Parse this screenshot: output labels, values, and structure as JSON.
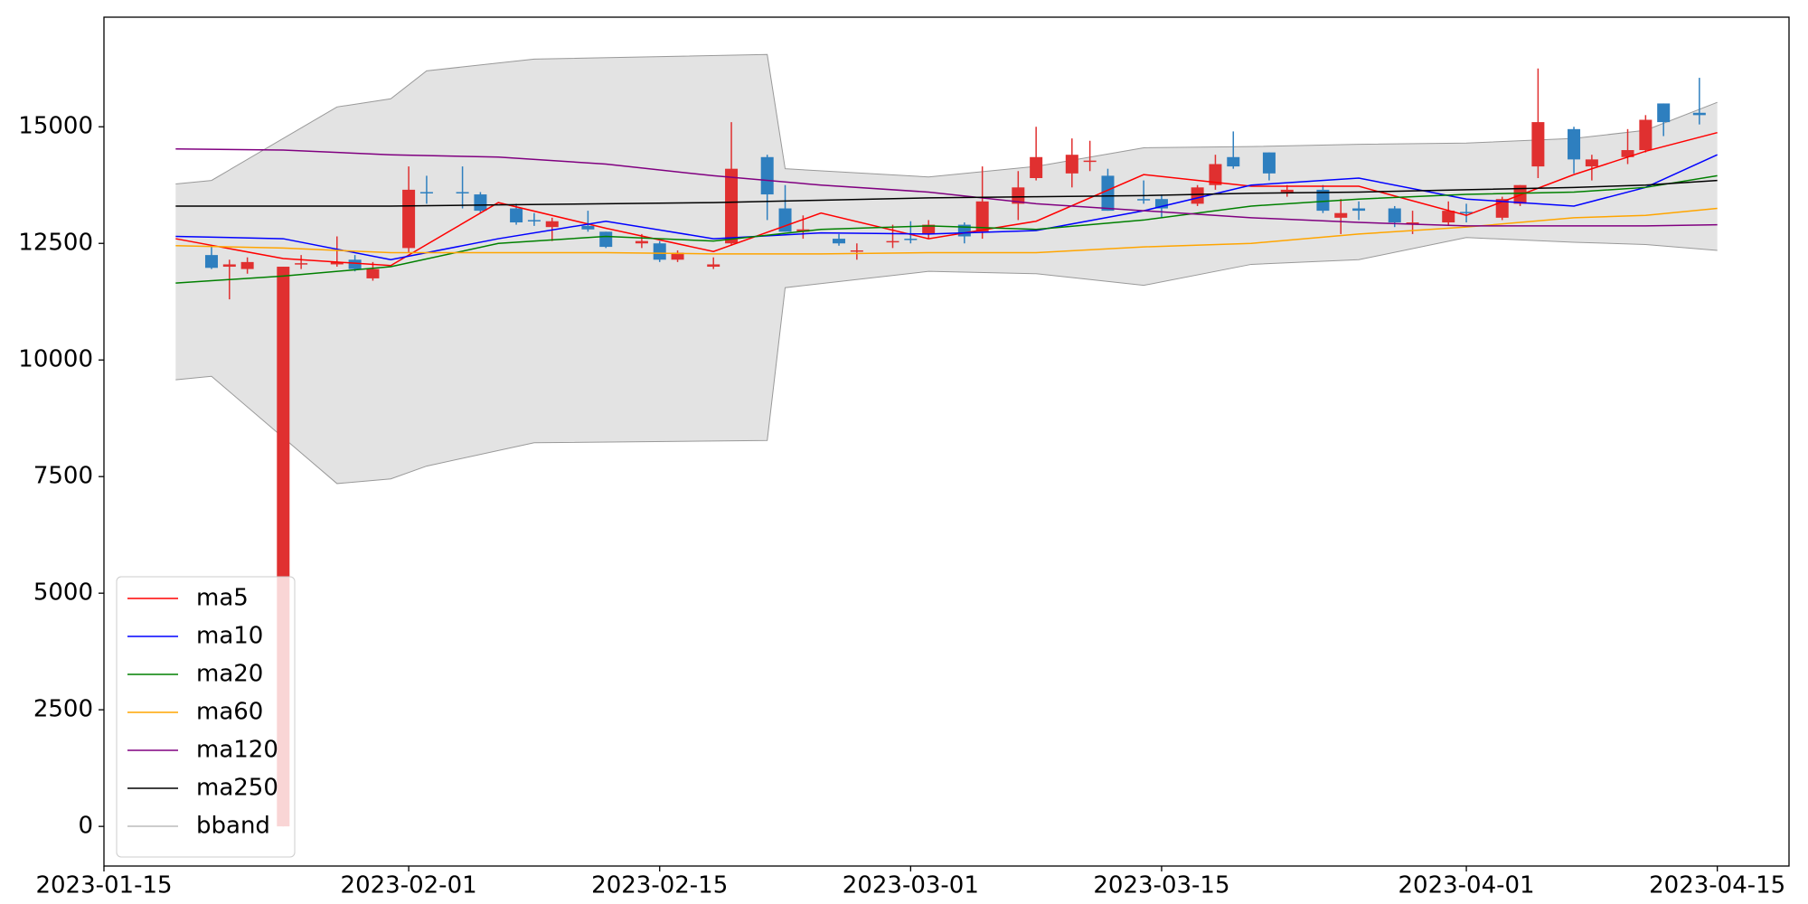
{
  "chart_data": {
    "type": "candlestick",
    "xlim": [
      "2023-01-15",
      "2023-04-19"
    ],
    "xticks": [
      "2023-01-15",
      "2023-02-01",
      "2023-02-15",
      "2023-03-01",
      "2023-03-15",
      "2023-04-01",
      "2023-04-15"
    ],
    "ylim": [
      -850,
      17350
    ],
    "yticks": [
      0,
      2500,
      5000,
      7500,
      10000,
      12500,
      15000
    ],
    "up_color": "#e03030",
    "down_color": "#2e7fbf",
    "candles": {
      "x": [
        "2023-01-21",
        "2023-01-22",
        "2023-01-23",
        "2023-01-25",
        "2023-01-26",
        "2023-01-28",
        "2023-01-29",
        "2023-01-30",
        "2023-02-01",
        "2023-02-02",
        "2023-02-04",
        "2023-02-05",
        "2023-02-07",
        "2023-02-08",
        "2023-02-09",
        "2023-02-11",
        "2023-02-12",
        "2023-02-14",
        "2023-02-15",
        "2023-02-16",
        "2023-02-18",
        "2023-02-19",
        "2023-02-21",
        "2023-02-22",
        "2023-02-23",
        "2023-02-25",
        "2023-02-26",
        "2023-02-28",
        "2023-03-01",
        "2023-03-02",
        "2023-03-04",
        "2023-03-05",
        "2023-03-07",
        "2023-03-08",
        "2023-03-10",
        "2023-03-11",
        "2023-03-12",
        "2023-03-14",
        "2023-03-15",
        "2023-03-17",
        "2023-03-18",
        "2023-03-19",
        "2023-03-21",
        "2023-03-22",
        "2023-03-24",
        "2023-03-25",
        "2023-03-26",
        "2023-03-28",
        "2023-03-29",
        "2023-03-31",
        "2023-04-01",
        "2023-04-03",
        "2023-04-04",
        "2023-04-05",
        "2023-04-07",
        "2023-04-08",
        "2023-04-10",
        "2023-04-11",
        "2023-04-12",
        "2023-04-14"
      ],
      "open": [
        12250,
        12000,
        11950,
        0,
        12050,
        12050,
        12150,
        11750,
        12400,
        13600,
        13600,
        13550,
        13250,
        13000,
        12850,
        12875,
        12750,
        12500,
        12500,
        12150,
        12000,
        12500,
        14350,
        13250,
        12750,
        12600,
        12325,
        12525,
        12600,
        12700,
        12900,
        12750,
        13350,
        13900,
        14000,
        14250,
        13950,
        13450,
        13450,
        13350,
        13750,
        14350,
        14450,
        13600,
        13650,
        13050,
        13250,
        13250,
        12925,
        12950,
        13175,
        13050,
        13350,
        14150,
        14950,
        14150,
        14350,
        14500,
        15500,
        15300
      ],
      "high": [
        12450,
        12150,
        12200,
        12000,
        12250,
        12650,
        12250,
        12100,
        14150,
        13950,
        14150,
        13600,
        13350,
        13150,
        13050,
        13200,
        12750,
        12700,
        12550,
        12350,
        12200,
        15100,
        14400,
        13750,
        13100,
        12700,
        12500,
        12900,
        12975,
        13000,
        12950,
        14150,
        14050,
        15000,
        14750,
        14700,
        14100,
        13850,
        13550,
        13750,
        14400,
        14900,
        14450,
        13750,
        13750,
        13450,
        13400,
        13300,
        13200,
        13400,
        13350,
        13500,
        13750,
        16250,
        15000,
        14400,
        14950,
        15250,
        15500,
        16050
      ],
      "low": [
        11950,
        11300,
        11850,
        0,
        11950,
        12000,
        11900,
        11700,
        12300,
        13350,
        13250,
        13150,
        12900,
        12875,
        12550,
        12750,
        12400,
        12400,
        12100,
        12100,
        11950,
        12450,
        13000,
        12750,
        12600,
        12450,
        12150,
        12400,
        12500,
        12600,
        12500,
        12600,
        13000,
        13850,
        13700,
        14050,
        13200,
        13350,
        13050,
        13300,
        13650,
        14100,
        13850,
        13500,
        13150,
        12700,
        13000,
        12850,
        12700,
        12900,
        12950,
        13000,
        13300,
        13900,
        14000,
        13850,
        14200,
        14450,
        14800,
        15050
      ],
      "close": [
        11975,
        12050,
        12100,
        12000,
        12075,
        12100,
        11950,
        11950,
        13650,
        13575,
        13575,
        13200,
        12950,
        12975,
        12975,
        12800,
        12425,
        12550,
        12150,
        12300,
        12050,
        14100,
        13550,
        12750,
        12800,
        12500,
        12350,
        12550,
        12575,
        12900,
        12650,
        13400,
        13700,
        14350,
        14400,
        14275,
        13200,
        13425,
        13250,
        13700,
        14200,
        14150,
        14000,
        13650,
        13200,
        13150,
        13200,
        12950,
        12950,
        13200,
        13150,
        13450,
        13750,
        15100,
        14300,
        14300,
        14500,
        15150,
        15100,
        15250
      ]
    },
    "line_x": [
      "2023-01-19",
      "2023-01-25",
      "2023-01-31",
      "2023-02-06",
      "2023-02-12",
      "2023-02-18",
      "2023-02-24",
      "2023-03-02",
      "2023-03-08",
      "2023-03-14",
      "2023-03-20",
      "2023-03-26",
      "2023-04-01",
      "2023-04-07",
      "2023-04-11",
      "2023-04-15"
    ],
    "series": [
      {
        "name": "ma5",
        "color": "#ff0000",
        "values": [
          12600,
          12175,
          12025,
          13375,
          12825,
          12325,
          13150,
          12600,
          12975,
          13975,
          13725,
          13725,
          13100,
          13975,
          14475,
          14875
        ]
      },
      {
        "name": "ma10",
        "color": "#0000ff",
        "values": [
          12650,
          12600,
          12150,
          12600,
          12975,
          12600,
          12725,
          12700,
          12775,
          13200,
          13750,
          13900,
          13450,
          13300,
          13700,
          14400
        ]
      },
      {
        "name": "ma20",
        "color": "#008000",
        "values": [
          11650,
          11800,
          12000,
          12500,
          12650,
          12550,
          12800,
          12875,
          12800,
          13000,
          13300,
          13450,
          13550,
          13600,
          13700,
          13950
        ]
      },
      {
        "name": "ma60",
        "color": "#ffa500",
        "values": [
          12450,
          12400,
          12300,
          12300,
          12300,
          12275,
          12275,
          12300,
          12300,
          12425,
          12500,
          12700,
          12850,
          13050,
          13100,
          13250
        ]
      },
      {
        "name": "ma120",
        "color": "#800080",
        "values": [
          14525,
          14500,
          14400,
          14350,
          14200,
          13950,
          13750,
          13600,
          13350,
          13200,
          13050,
          12950,
          12875,
          12875,
          12875,
          12900
        ]
      },
      {
        "name": "ma250",
        "color": "#000000",
        "values": [
          13300,
          13300,
          13300,
          13325,
          13350,
          13375,
          13425,
          13475,
          13500,
          13525,
          13575,
          13600,
          13650,
          13700,
          13750,
          13850
        ]
      }
    ],
    "bband": {
      "name": "bband",
      "color": "#999999",
      "fill": "#e3e3e3",
      "x": [
        "2023-01-19",
        "2023-01-21",
        "2023-01-28",
        "2023-01-31",
        "2023-02-02",
        "2023-02-08",
        "2023-02-21",
        "2023-02-22",
        "2023-03-02",
        "2023-03-08",
        "2023-03-14",
        "2023-03-20",
        "2023-03-26",
        "2023-04-01",
        "2023-04-07",
        "2023-04-11",
        "2023-04-15"
      ],
      "upper": [
        13775,
        13850,
        15425,
        15600,
        16200,
        16450,
        16550,
        14100,
        13925,
        14150,
        14550,
        14575,
        14625,
        14650,
        14750,
        14925,
        15525
      ],
      "lower": [
        9575,
        9650,
        7350,
        7450,
        7725,
        8225,
        8275,
        11550,
        11900,
        11850,
        11600,
        12050,
        12150,
        12625,
        12525,
        12475,
        12350
      ]
    }
  }
}
